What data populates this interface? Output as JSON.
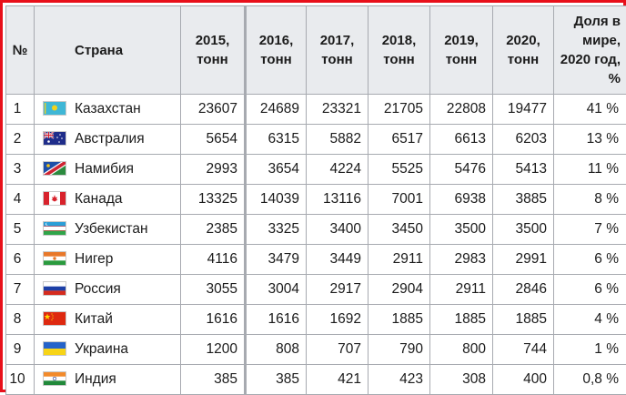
{
  "table": {
    "headers": {
      "rank": "№",
      "country": "Страна",
      "y2015": "2015, тонн",
      "y2016": "2016, тонн",
      "y2017": "2017, тонн",
      "y2018": "2018, тонн",
      "y2019": "2019, тонн",
      "y2020": "2020, тонн",
      "share": "Доля в мире, 2020 год, %"
    },
    "rows": [
      {
        "rank": "1",
        "country": "Казахстан",
        "flag": "kazakhstan-flag-icon",
        "y2015": "23607",
        "y2016": "24689",
        "y2017": "23321",
        "y2018": "21705",
        "y2019": "22808",
        "y2020": "19477",
        "share": "41 %"
      },
      {
        "rank": "2",
        "country": "Австралия",
        "flag": "australia-flag-icon",
        "y2015": "5654",
        "y2016": "6315",
        "y2017": "5882",
        "y2018": "6517",
        "y2019": "6613",
        "y2020": "6203",
        "share": "13 %"
      },
      {
        "rank": "3",
        "country": "Намибия",
        "flag": "namibia-flag-icon",
        "y2015": "2993",
        "y2016": "3654",
        "y2017": "4224",
        "y2018": "5525",
        "y2019": "5476",
        "y2020": "5413",
        "share": "11 %"
      },
      {
        "rank": "4",
        "country": "Канада",
        "flag": "canada-flag-icon",
        "y2015": "13325",
        "y2016": "14039",
        "y2017": "13116",
        "y2018": "7001",
        "y2019": "6938",
        "y2020": "3885",
        "share": "8 %"
      },
      {
        "rank": "5",
        "country": "Узбекистан",
        "flag": "uzbekistan-flag-icon",
        "y2015": "2385",
        "y2016": "3325",
        "y2017": "3400",
        "y2018": "3450",
        "y2019": "3500",
        "y2020": "3500",
        "share": "7 %"
      },
      {
        "rank": "6",
        "country": "Нигер",
        "flag": "niger-flag-icon",
        "y2015": "4116",
        "y2016": "3479",
        "y2017": "3449",
        "y2018": "2911",
        "y2019": "2983",
        "y2020": "2991",
        "share": "6 %"
      },
      {
        "rank": "7",
        "country": "Россия",
        "flag": "russia-flag-icon",
        "y2015": "3055",
        "y2016": "3004",
        "y2017": "2917",
        "y2018": "2904",
        "y2019": "2911",
        "y2020": "2846",
        "share": "6 %"
      },
      {
        "rank": "8",
        "country": "Китай",
        "flag": "china-flag-icon",
        "y2015": "1616",
        "y2016": "1616",
        "y2017": "1692",
        "y2018": "1885",
        "y2019": "1885",
        "y2020": "1885",
        "share": "4 %"
      },
      {
        "rank": "9",
        "country": "Украина",
        "flag": "ukraine-flag-icon",
        "y2015": "1200",
        "y2016": "808",
        "y2017": "707",
        "y2018": "790",
        "y2019": "800",
        "y2020": "744",
        "share": "1 %"
      },
      {
        "rank": "10",
        "country": "Индия",
        "flag": "india-flag-icon",
        "y2015": "385",
        "y2016": "385",
        "y2017": "421",
        "y2018": "423",
        "y2019": "308",
        "y2020": "400",
        "share": "0,8 %"
      }
    ]
  },
  "colors": {
    "frame_border": "#e8101a",
    "header_bg": "#e9ebee",
    "grid": "#a7aab0"
  }
}
